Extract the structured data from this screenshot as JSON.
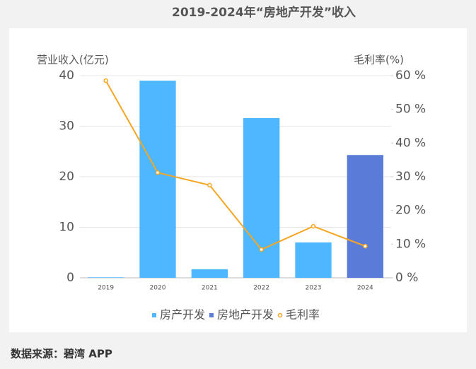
{
  "chart_data": {
    "type": "bar",
    "title": "2019-2024年“房地产开发”收入",
    "y_label": "营业收入(亿元)",
    "y2_label": "毛利率(%)",
    "source": "数据来源：碧湾 APP",
    "categories": [
      "2019",
      "2020",
      "2021",
      "2022",
      "2023",
      "2024"
    ],
    "series": [
      {
        "name": "房产开发",
        "type": "bar",
        "color": "#4db8ff",
        "values": [
          0.1,
          39.0,
          1.7,
          31.6,
          7.0,
          null
        ]
      },
      {
        "name": "房地产开发",
        "type": "bar",
        "color": "#5b7bd8",
        "values": [
          null,
          null,
          null,
          null,
          null,
          24.3
        ]
      },
      {
        "name": "毛利率",
        "type": "line",
        "axis": "y2",
        "color": "#f5a623",
        "values": [
          58.5,
          31.2,
          27.5,
          8.4,
          15.3,
          9.4
        ]
      }
    ],
    "ylim": [
      0,
      40
    ],
    "yticks": [
      0,
      10,
      20,
      30,
      40
    ],
    "y2lim": [
      0,
      60
    ],
    "y2ticks": [
      {
        "value": 0,
        "label": "0 %"
      },
      {
        "value": 10,
        "label": "10 %"
      },
      {
        "value": 20,
        "label": "20 %"
      },
      {
        "value": 30,
        "label": "30 %"
      },
      {
        "value": 40,
        "label": "40 %"
      },
      {
        "value": 50,
        "label": "50 %"
      },
      {
        "value": 60,
        "label": "60 %"
      }
    ],
    "grid": true,
    "legend": "bottom"
  }
}
